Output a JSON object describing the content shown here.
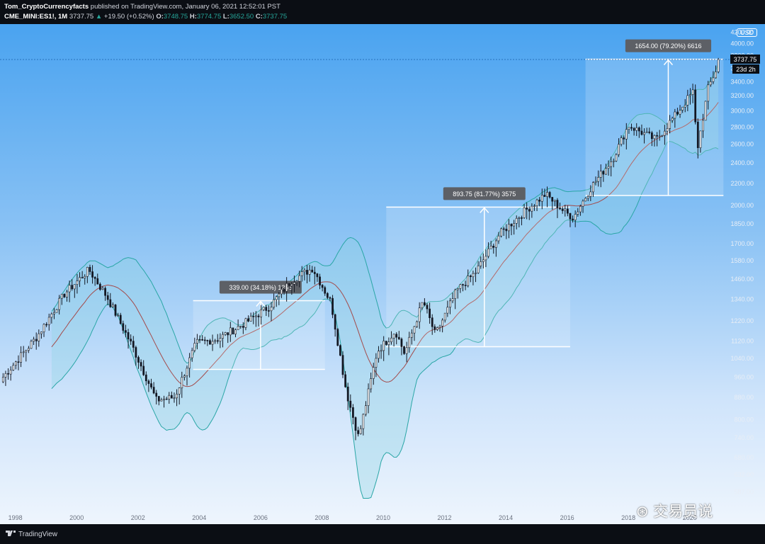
{
  "header": {
    "author": "Tom_CryptoCurrencyfacts",
    "published": "published on TradingView.com, January 06, 2021 12:52:01 PST",
    "symbol": "CME_MINI:ES1!, 1M",
    "price": "3737.75",
    "change": "+19.50 (+0.52%)",
    "o_label": "O:",
    "o_value": "3748.75",
    "h_label": "H:",
    "h_value": "3774.75",
    "l_label": "L:",
    "l_value": "3652.50",
    "c_label": "C:",
    "c_value": "3737.75"
  },
  "price_axis": {
    "currency": "USD",
    "last_price": "3737.75",
    "countdown": "23d 2h"
  },
  "footer": {
    "brand": "TradingView"
  },
  "watermark": "交易员说",
  "colors": {
    "band_fill": "#8fd3e3",
    "band_line": "#2aa6a6",
    "middle_line": "#a44a4a",
    "candle_up": "#ffffff",
    "candle_down": "#131722",
    "measure": "#ffffff"
  },
  "chart_data": {
    "type": "candlestick",
    "scale": "log",
    "x_ticks": [
      "1998",
      "2000",
      "2002",
      "2004",
      "2006",
      "2008",
      "2010",
      "2012",
      "2014",
      "2016",
      "2018",
      "2020"
    ],
    "y_ticks": [
      587,
      632,
      680,
      740,
      800,
      880,
      960,
      1040,
      1120,
      1220,
      1340,
      1460,
      1580,
      1700,
      1850,
      2000,
      2200,
      2400,
      2600,
      2800,
      3000,
      3200,
      3400,
      3600,
      3800,
      4000,
      4200
    ],
    "y_tick_labels": [
      "587.00",
      "632.00",
      "680.00",
      "740.00",
      "800.00",
      "880.00",
      "960.00",
      "1040.00",
      "1120.00",
      "1220.00",
      "1340.00",
      "1460.00",
      "1580.00",
      "1700.00",
      "1850.00",
      "2000.00",
      "2200.00",
      "2400.00",
      "2600.00",
      "2800.00",
      "3000.00",
      "3200.00",
      "3400.00",
      "3600.00",
      "3800.00",
      "4000.00",
      "4200.00"
    ],
    "ylim": [
      560,
      4350
    ],
    "xlim": [
      1997.5,
      2021.3
    ],
    "indicator": "Bollinger Bands (20, 2)",
    "price_anchors": [
      [
        1997.6,
        960
      ],
      [
        1998.7,
        1140
      ],
      [
        1999.6,
        1370
      ],
      [
        2000.4,
        1520
      ],
      [
        2001.0,
        1350
      ],
      [
        2001.8,
        1100
      ],
      [
        2002.6,
        870
      ],
      [
        2003.2,
        880
      ],
      [
        2003.9,
        1110
      ],
      [
        2004.6,
        1130
      ],
      [
        2005.5,
        1210
      ],
      [
        2006.3,
        1300
      ],
      [
        2007.0,
        1450
      ],
      [
        2007.7,
        1530
      ],
      [
        2008.3,
        1320
      ],
      [
        2008.8,
        900
      ],
      [
        2009.2,
        740
      ],
      [
        2009.8,
        1070
      ],
      [
        2010.4,
        1170
      ],
      [
        2010.7,
        1060
      ],
      [
        2011.3,
        1330
      ],
      [
        2011.7,
        1150
      ],
      [
        2012.4,
        1390
      ],
      [
        2013.0,
        1500
      ],
      [
        2013.8,
        1770
      ],
      [
        2014.6,
        1950
      ],
      [
        2015.3,
        2100
      ],
      [
        2015.9,
        1950
      ],
      [
        2016.2,
        1900
      ],
      [
        2016.8,
        2170
      ],
      [
        2017.5,
        2450
      ],
      [
        2018.0,
        2820
      ],
      [
        2018.9,
        2650
      ],
      [
        2019.5,
        2930
      ],
      [
        2020.1,
        3250
      ],
      [
        2020.25,
        2550
      ],
      [
        2020.6,
        3300
      ],
      [
        2021.0,
        3737.75
      ]
    ],
    "measurements": [
      {
        "label": "339.00 (34.18%) 1356",
        "x_start": 2003.8,
        "x_end": 2008.1,
        "y_low": 992,
        "y_high": 1331,
        "arrow_x": 2006.0
      },
      {
        "label": "893.75 (81.77%) 3575",
        "x_start": 2010.1,
        "x_end": 2016.1,
        "y_low": 1093,
        "y_high": 1987,
        "arrow_x": 2013.3
      },
      {
        "label": "1654.00 (79.20%) 6616",
        "x_start": 2016.6,
        "x_end": 2021.1,
        "y_low": 2088,
        "y_high": 3742,
        "arrow_x": 2019.3
      }
    ]
  }
}
